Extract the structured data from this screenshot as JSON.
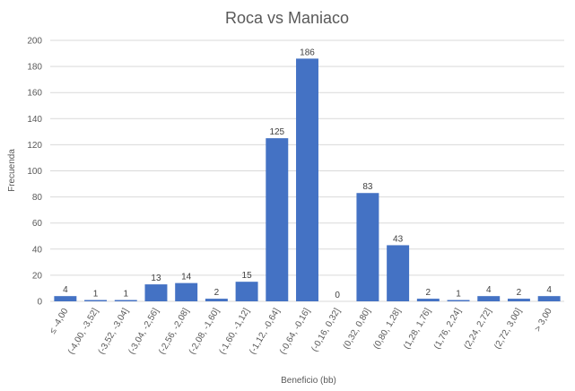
{
  "chart_data": {
    "type": "bar",
    "title": "Roca vs Maniaco",
    "xlabel": "Beneficio (bb)",
    "ylabel": "Frecuenda",
    "ylim": [
      0,
      200
    ],
    "yticks": [
      0,
      20,
      40,
      60,
      80,
      100,
      120,
      140,
      160,
      180,
      200
    ],
    "grid": true,
    "legend": "none",
    "bar_color": "#4472C4",
    "gridline_color": "#D9D9D9",
    "categories": [
      "≤ -4,00",
      "(-4,00, -3,52]",
      "(-3,52, -3,04]",
      "(-3,04, -2,56]",
      "(-2,56, -2,08]",
      "(-2,08, -1,60]",
      "(-1,60, -1,12]",
      "(-1,12, -0,64]",
      "(-0,64, -0,16]",
      "(-0,16, 0,32]",
      "(0,32, 0,80]",
      "(0,80, 1,28]",
      "(1,28, 1,76]",
      "(1,76, 2,24]",
      "(2,24, 2,72]",
      "(2,72, 3,00]",
      "> 3,00"
    ],
    "values": [
      4,
      1,
      1,
      13,
      14,
      2,
      15,
      125,
      186,
      0,
      83,
      43,
      2,
      1,
      4,
      2,
      4
    ]
  }
}
